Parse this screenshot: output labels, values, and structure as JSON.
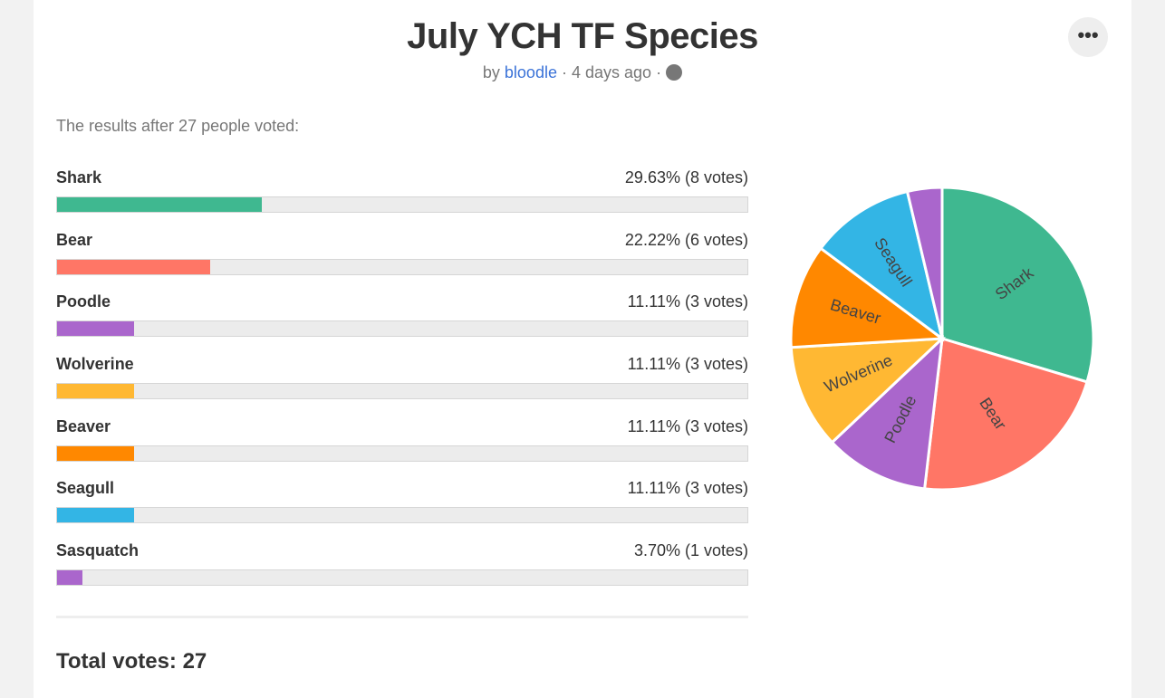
{
  "header": {
    "title": "July YCH TF Species",
    "by": "by",
    "author": "bloodle",
    "sep": "·",
    "time": "4 days ago",
    "globe_icon": "globe-icon",
    "more_label": "•••"
  },
  "intro": "The results after 27 people voted:",
  "total": "Total votes: 27",
  "chart_data": {
    "type": "pie",
    "total_votes": 27,
    "options": [
      {
        "name": "Shark",
        "votes": 8,
        "percent": 29.63,
        "text": "29.63% (8 votes)",
        "color": "#3fb890"
      },
      {
        "name": "Bear",
        "votes": 6,
        "percent": 22.22,
        "text": "22.22% (6 votes)",
        "color": "#ff7666"
      },
      {
        "name": "Poodle",
        "votes": 3,
        "percent": 11.11,
        "text": "11.11% (3 votes)",
        "color": "#aa66cc"
      },
      {
        "name": "Wolverine",
        "votes": 3,
        "percent": 11.11,
        "text": "11.11% (3 votes)",
        "color": "#ffb833"
      },
      {
        "name": "Beaver",
        "votes": 3,
        "percent": 11.11,
        "text": "11.11% (3 votes)",
        "color": "#ff8800"
      },
      {
        "name": "Seagull",
        "votes": 3,
        "percent": 11.11,
        "text": "11.11% (3 votes)",
        "color": "#33b5e5"
      },
      {
        "name": "Sasquatch",
        "votes": 1,
        "percent": 3.7,
        "text": "3.70% (1 votes)",
        "color": "#aa66cc"
      }
    ]
  }
}
